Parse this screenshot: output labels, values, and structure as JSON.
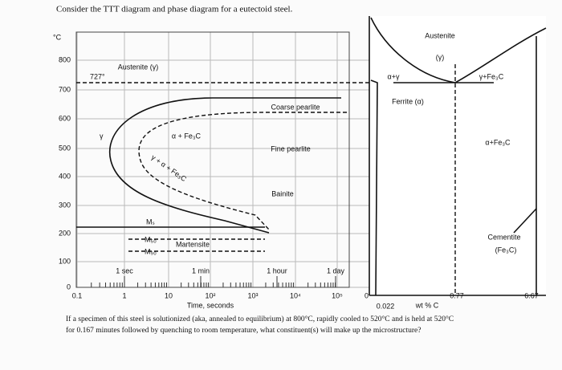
{
  "header": {
    "title": "Consider the TTT diagram and phase diagram for a eutectoid steel."
  },
  "ttt": {
    "y_unit": "°C",
    "yticks": [
      "800",
      "700",
      "600",
      "500",
      "400",
      "300",
      "200",
      "100",
      "0"
    ],
    "xticks": [
      "0.1",
      "1",
      "10",
      "10²",
      "10³",
      "10⁴",
      "10⁵"
    ],
    "x_label": "Time, seconds",
    "time_markers": [
      "1 sec",
      "1 min",
      "1 hour",
      "1 day"
    ],
    "labels": {
      "austenite": "Austenite (γ)",
      "eutectoid_temp": "727°",
      "coarse": "Coarse pearlite",
      "gamma": "γ",
      "alpha_fe3c": "α + Fe₃C",
      "fine": "Fine pearlite",
      "gamma_alpha_fe3c": "γ + α + Fe₃C",
      "bainite": "Bainite",
      "ms": "Mₛ",
      "m50": "M₅₀",
      "m90": "M₉₀",
      "martensite": "Martensite"
    }
  },
  "phase": {
    "austenite": "Austenite",
    "gamma": "(γ)",
    "alpha_gamma": "α+γ",
    "gamma_fe3c": "γ+Fe₃C",
    "ferrite": "Ferrite (α)",
    "alpha_fe3c": "α+Fe₃C",
    "cementite": "Cementite",
    "fe3c": "(Fe₃C)",
    "x0": "0",
    "x077": "0.77",
    "x667": "6.67",
    "x0022": "0.022",
    "x_label": "wt % C"
  },
  "question": {
    "line1": "If a specimen of this steel is solutionized (aka, annealed to equilibrium) at 800°C, rapidly cooled to 520°C and is held at 520°C",
    "line2": "for 0.167 minutes followed by quenching to room temperature, what constituent(s) will make up the microstructure?"
  }
}
